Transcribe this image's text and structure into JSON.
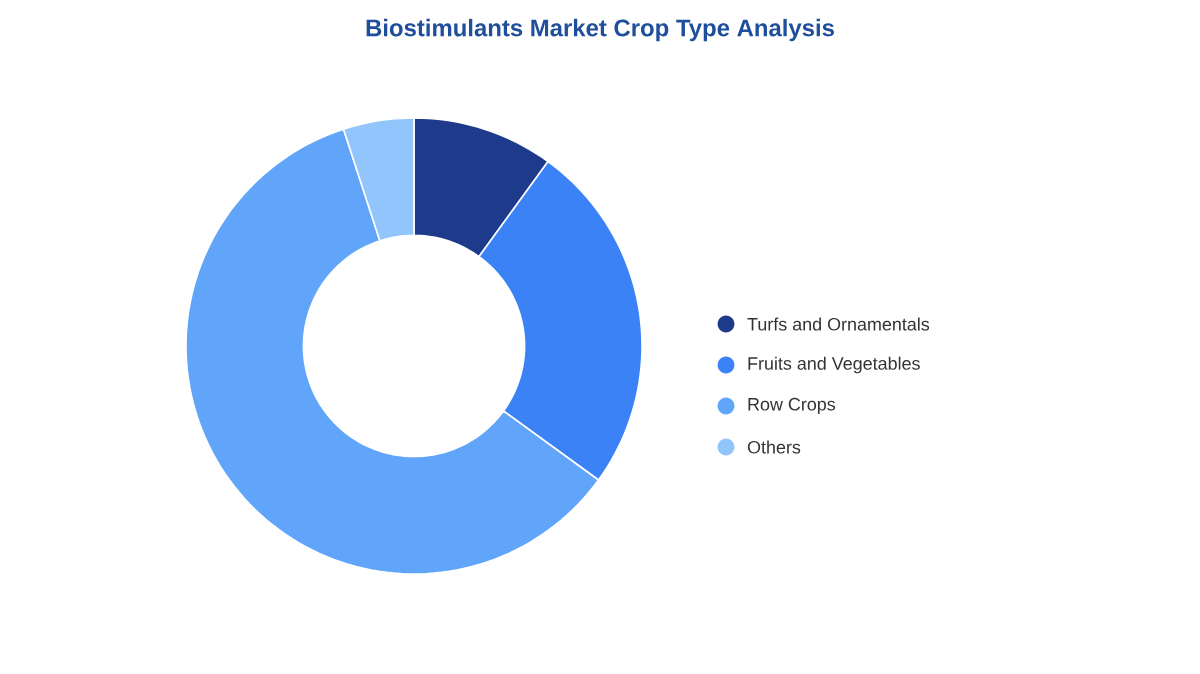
{
  "chart_data": {
    "type": "donut",
    "title": "Biostimulants Market Crop Type Analysis",
    "categories": [
      "Turfs and Ornamentals",
      "Fruits and Vegetables",
      "Row Crops",
      "Others"
    ],
    "values": [
      10,
      25,
      60,
      5
    ],
    "colors": [
      "#1e3a8a",
      "#3b82f6",
      "#60a5fa",
      "#93c5fd"
    ],
    "legend": "right"
  }
}
